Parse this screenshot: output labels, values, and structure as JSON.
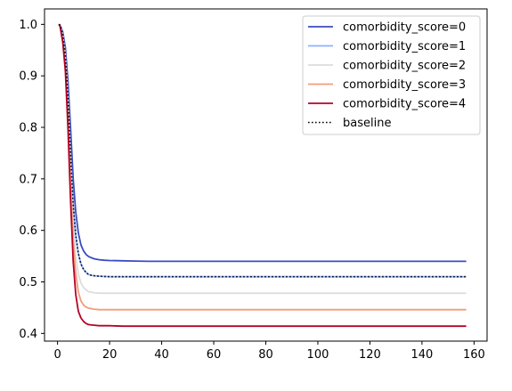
{
  "chart_data": {
    "type": "line",
    "title": "",
    "xlabel": "",
    "ylabel": "",
    "xlim": [
      -5,
      165
    ],
    "ylim": [
      0.385,
      1.03
    ],
    "xticks": [
      0,
      20,
      40,
      60,
      80,
      100,
      120,
      140,
      160
    ],
    "yticks": [
      0.4,
      0.5,
      0.6,
      0.7,
      0.8,
      0.9,
      1.0
    ],
    "xtick_labels": [
      "0",
      "20",
      "40",
      "60",
      "80",
      "100",
      "120",
      "140",
      "160"
    ],
    "ytick_labels": [
      "0.4",
      "0.5",
      "0.6",
      "0.7",
      "0.8",
      "0.9",
      "1.0"
    ],
    "grid": false,
    "legend_position": "top-right",
    "x": [
      0.5,
      1,
      2,
      3,
      4,
      5,
      6,
      7,
      8,
      9,
      10,
      11,
      12,
      14,
      16,
      18,
      20,
      25,
      30,
      35,
      40,
      60,
      80,
      100,
      120,
      140,
      157
    ],
    "series": [
      {
        "name": "comorbidity_score=0",
        "color": "#3b4cc0",
        "style": "solid",
        "values": [
          1.0,
          0.999,
          0.985,
          0.955,
          0.89,
          0.8,
          0.7,
          0.635,
          0.595,
          0.572,
          0.56,
          0.553,
          0.549,
          0.545,
          0.543,
          0.542,
          0.5415,
          0.541,
          0.5405,
          0.54,
          0.54,
          0.54,
          0.54,
          0.54,
          0.54,
          0.54,
          0.54
        ]
      },
      {
        "name": "comorbidity_score=1",
        "color": "#8db0fe",
        "style": "solid",
        "values": [
          1.0,
          0.998,
          0.98,
          0.94,
          0.86,
          0.75,
          0.65,
          0.59,
          0.555,
          0.535,
          0.524,
          0.518,
          0.514,
          0.512,
          0.511,
          0.5105,
          0.51,
          0.51,
          0.51,
          0.51,
          0.51,
          0.51,
          0.51,
          0.51,
          0.51,
          0.51,
          0.51
        ]
      },
      {
        "name": "comorbidity_score=2",
        "color": "#dddddd",
        "style": "solid",
        "values": [
          1.0,
          0.998,
          0.975,
          0.93,
          0.84,
          0.72,
          0.61,
          0.55,
          0.515,
          0.498,
          0.489,
          0.484,
          0.481,
          0.479,
          0.478,
          0.478,
          0.478,
          0.478,
          0.478,
          0.478,
          0.478,
          0.478,
          0.478,
          0.478,
          0.478,
          0.478,
          0.478
        ]
      },
      {
        "name": "comorbidity_score=3",
        "color": "#f49a7b",
        "style": "solid",
        "values": [
          1.0,
          0.997,
          0.97,
          0.92,
          0.82,
          0.69,
          0.58,
          0.515,
          0.48,
          0.463,
          0.455,
          0.451,
          0.449,
          0.447,
          0.446,
          0.446,
          0.446,
          0.446,
          0.446,
          0.446,
          0.446,
          0.446,
          0.446,
          0.446,
          0.446,
          0.446,
          0.446
        ]
      },
      {
        "name": "comorbidity_score=4",
        "color": "#b40426",
        "style": "solid",
        "values": [
          1.0,
          0.996,
          0.965,
          0.91,
          0.8,
          0.66,
          0.54,
          0.475,
          0.443,
          0.43,
          0.423,
          0.419,
          0.417,
          0.416,
          0.415,
          0.415,
          0.415,
          0.414,
          0.414,
          0.414,
          0.414,
          0.414,
          0.414,
          0.414,
          0.414,
          0.414,
          0.414
        ]
      },
      {
        "name": "baseline",
        "color": "#000000",
        "style": "dotted",
        "values": [
          1.0,
          0.998,
          0.98,
          0.94,
          0.86,
          0.75,
          0.65,
          0.59,
          0.555,
          0.535,
          0.524,
          0.518,
          0.514,
          0.512,
          0.511,
          0.5105,
          0.51,
          0.51,
          0.51,
          0.51,
          0.51,
          0.51,
          0.51,
          0.51,
          0.51,
          0.51,
          0.51
        ]
      }
    ]
  }
}
